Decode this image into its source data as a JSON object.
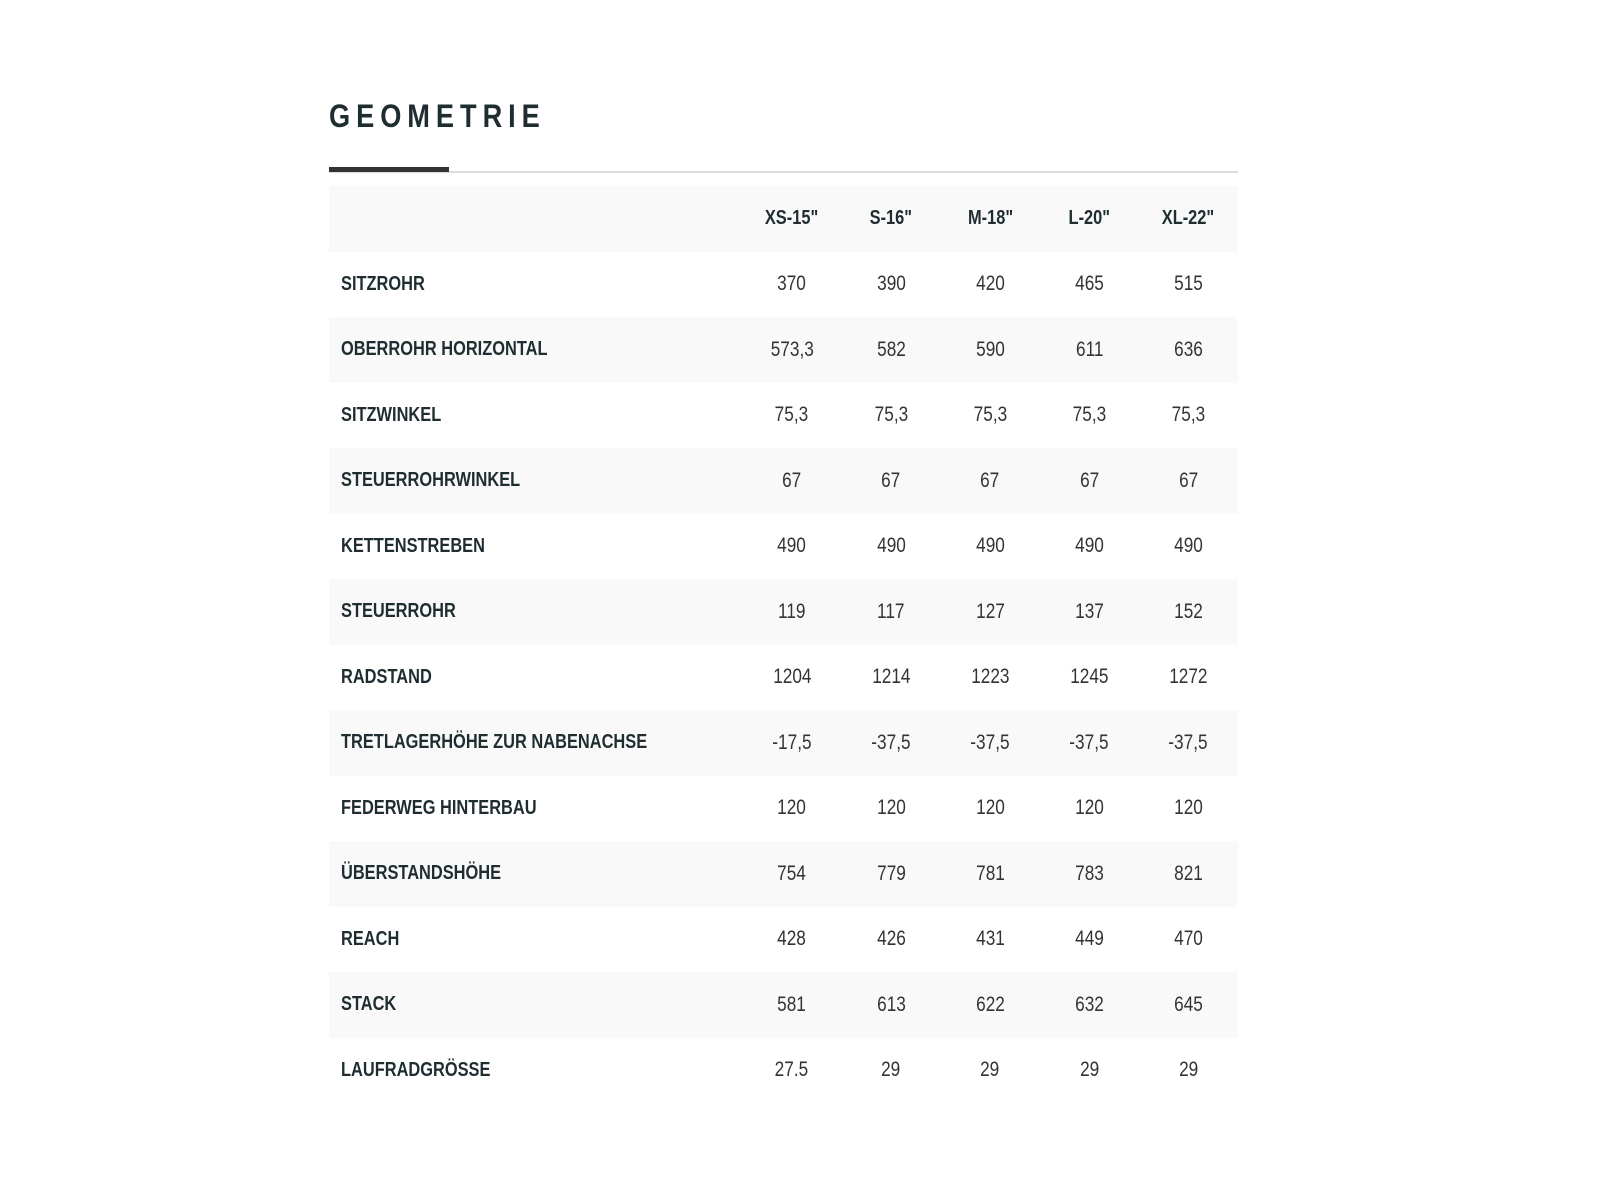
{
  "title": "GEOMETRIE",
  "columns": [
    "XS-15\"",
    "S-16\"",
    "M-18\"",
    "L-20\"",
    "XL-22\""
  ],
  "rows": [
    {
      "label": "SITZROHR",
      "values": [
        "370",
        "390",
        "420",
        "465",
        "515"
      ]
    },
    {
      "label": "OBERROHR HORIZONTAL",
      "values": [
        "573,3",
        "582",
        "590",
        "611",
        "636"
      ]
    },
    {
      "label": "SITZWINKEL",
      "values": [
        "75,3",
        "75,3",
        "75,3",
        "75,3",
        "75,3"
      ]
    },
    {
      "label": "STEUERROHRWINKEL",
      "values": [
        "67",
        "67",
        "67",
        "67",
        "67"
      ]
    },
    {
      "label": "KETTENSTREBEN",
      "values": [
        "490",
        "490",
        "490",
        "490",
        "490"
      ]
    },
    {
      "label": "STEUERROHR",
      "values": [
        "119",
        "117",
        "127",
        "137",
        "152"
      ]
    },
    {
      "label": "RADSTAND",
      "values": [
        "1204",
        "1214",
        "1223",
        "1245",
        "1272"
      ]
    },
    {
      "label": "TRETLAGERHÖHE ZUR NABENACHSE",
      "values": [
        "-17,5",
        "-37,5",
        "-37,5",
        "-37,5",
        "-37,5"
      ]
    },
    {
      "label": "FEDERWEG HINTERBAU",
      "values": [
        "120",
        "120",
        "120",
        "120",
        "120"
      ]
    },
    {
      "label": "ÜBERSTANDSHÖHE",
      "values": [
        "754",
        "779",
        "781",
        "783",
        "821"
      ]
    },
    {
      "label": "REACH",
      "values": [
        "428",
        "426",
        "431",
        "449",
        "470"
      ]
    },
    {
      "label": "STACK",
      "values": [
        "581",
        "613",
        "622",
        "632",
        "645"
      ]
    },
    {
      "label": "LAUFRADGRÖSSE",
      "values": [
        "27.5",
        "29",
        "29",
        "29",
        "29"
      ]
    }
  ]
}
